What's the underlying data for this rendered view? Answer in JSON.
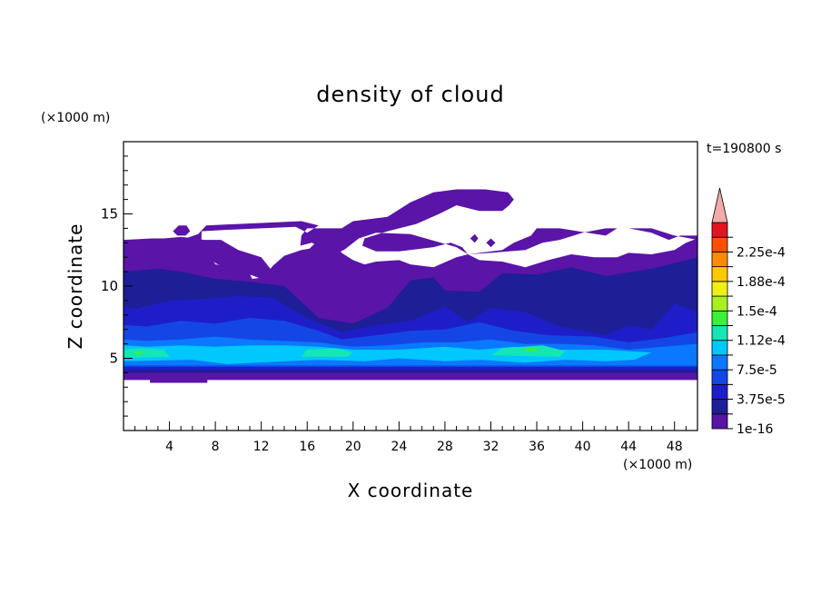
{
  "chart_data": {
    "type": "heatmap",
    "title": "density of cloud",
    "xlabel": "X coordinate",
    "ylabel": "Z coordinate",
    "x_unit": "(×1000 m)",
    "y_unit": "(×1000 m)",
    "time_label": "t=190800 s",
    "xlim": [
      0,
      50
    ],
    "ylim": [
      0,
      20
    ],
    "x_ticks": [
      4,
      8,
      12,
      16,
      20,
      24,
      28,
      32,
      36,
      40,
      44,
      48
    ],
    "y_ticks": [
      5,
      10,
      15
    ],
    "x_tick_labels": [
      "4",
      "8",
      "12",
      "16",
      "20",
      "24",
      "28",
      "32",
      "36",
      "40",
      "44",
      "48"
    ],
    "y_tick_labels": [
      "5",
      "10",
      "15"
    ],
    "colorbar": {
      "levels": [
        1e-16,
        1.875e-05,
        3.75e-05,
        5.625e-05,
        7.5e-05,
        9.375e-05,
        0.0001125,
        0.00013125,
        0.00015,
        0.00016875,
        0.0001875,
        0.00020625,
        0.000225,
        0.00024375
      ],
      "labels": [
        "1e-16",
        "3.75e-5",
        "7.5e-5",
        "1.12e-4",
        "1.5e-4",
        "1.88e-4",
        "2.25e-4"
      ],
      "colors": [
        "#5a14a8",
        "#1e1e96",
        "#1e1ec8",
        "#1446e6",
        "#0a78ff",
        "#00c8ff",
        "#14e6b4",
        "#3cf03c",
        "#aaf01e",
        "#f0f014",
        "#ffc800",
        "#ff8c00",
        "#ff5000",
        "#e6141e"
      ],
      "extend_color": "#f4aaaa"
    },
    "regions": [
      {
        "name": "upper-cloud",
        "level": 0,
        "polygon": [
          [
            2.3,
            3.3
          ],
          [
            7.3,
            3.3
          ],
          [
            7.3,
            3.7
          ],
          [
            20,
            3.7
          ],
          [
            30,
            3.8
          ],
          [
            48,
            3.6
          ],
          [
            50,
            3.9
          ],
          [
            50,
            13.2
          ],
          [
            48,
            13.5
          ],
          [
            46,
            14
          ],
          [
            43,
            14
          ],
          [
            42,
            13.5
          ],
          [
            38,
            14
          ],
          [
            36,
            14
          ],
          [
            35.5,
            13.5
          ],
          [
            34,
            13
          ],
          [
            33,
            12.5
          ],
          [
            30,
            12.2
          ],
          [
            29,
            12.7
          ],
          [
            25,
            13.6
          ],
          [
            22,
            13.7
          ],
          [
            20.5,
            13.3
          ],
          [
            19.2,
            12.5
          ],
          [
            18.2,
            12.2
          ],
          [
            17.5,
            12.6
          ],
          [
            16.4,
            13
          ],
          [
            15.4,
            12.8
          ],
          [
            15.5,
            13.5
          ],
          [
            16,
            14
          ],
          [
            19,
            14
          ],
          [
            20,
            14.5
          ],
          [
            23,
            14.8
          ],
          [
            25,
            15.8
          ],
          [
            27,
            16.5
          ],
          [
            29,
            16.7
          ],
          [
            31.5,
            16.7
          ],
          [
            33.5,
            16.5
          ],
          [
            34,
            16
          ],
          [
            33.6,
            15.6
          ],
          [
            33,
            15.2
          ],
          [
            31,
            15.2
          ],
          [
            29,
            15.6
          ],
          [
            27.5,
            15
          ],
          [
            25.5,
            14.3
          ],
          [
            23,
            13.8
          ],
          [
            21,
            13.3
          ],
          [
            20.8,
            12.8
          ],
          [
            22,
            12.4
          ],
          [
            24,
            12.4
          ],
          [
            27,
            12.7
          ],
          [
            28.5,
            13
          ],
          [
            29.5,
            12.7
          ],
          [
            30,
            12.2
          ],
          [
            32,
            12.3
          ],
          [
            35,
            12.5
          ],
          [
            36.5,
            13
          ],
          [
            38,
            13.2
          ],
          [
            40,
            13.7
          ],
          [
            42,
            14
          ],
          [
            44,
            14
          ],
          [
            46,
            13.7
          ],
          [
            47.5,
            13.2
          ],
          [
            48.5,
            13.5
          ],
          [
            50,
            13.5
          ],
          [
            50,
            3.9
          ],
          [
            6.5,
            4.3
          ],
          [
            6.8,
            13.8
          ],
          [
            9,
            13.9
          ],
          [
            12,
            14
          ],
          [
            15,
            14.1
          ],
          [
            16,
            13.7
          ],
          [
            17,
            14.2
          ],
          [
            15.5,
            14.5
          ],
          [
            10,
            14.3
          ],
          [
            7.2,
            14.2
          ],
          [
            6.5,
            13.6
          ],
          [
            5,
            13.2
          ],
          [
            2.4,
            13.3
          ],
          [
            2.4,
            11.3
          ],
          [
            4.5,
            12.3
          ],
          [
            6.5,
            12.6
          ],
          [
            8,
            11.6
          ],
          [
            9.5,
            11
          ],
          [
            11,
            10.8
          ],
          [
            12,
            10.5
          ],
          [
            13,
            11
          ],
          [
            12,
            12
          ],
          [
            10,
            12.5
          ],
          [
            8.5,
            13.2
          ],
          [
            6.5,
            13.2
          ],
          [
            2.4,
            13.3
          ],
          [
            2.3,
            4
          ]
        ]
      },
      {
        "name": "left-cap",
        "level": 0,
        "polygon": [
          [
            0,
            3.5
          ],
          [
            50,
            3.5
          ],
          [
            50,
            13.3
          ],
          [
            49,
            13
          ],
          [
            48,
            12.5
          ],
          [
            46,
            12.2
          ],
          [
            44,
            12.3
          ],
          [
            43,
            12
          ],
          [
            41,
            12
          ],
          [
            39,
            12.2
          ],
          [
            37,
            11.8
          ],
          [
            35,
            11.3
          ],
          [
            33,
            11.7
          ],
          [
            31,
            11.8
          ],
          [
            30,
            12.2
          ],
          [
            29,
            12
          ],
          [
            27,
            11.3
          ],
          [
            25,
            11.5
          ],
          [
            24,
            11.8
          ],
          [
            22,
            11.7
          ],
          [
            21,
            11.5
          ],
          [
            20,
            11.8
          ],
          [
            19,
            12.3
          ],
          [
            18.5,
            13
          ],
          [
            18,
            13.4
          ],
          [
            17,
            13.2
          ],
          [
            16.2,
            12.6
          ],
          [
            15.5,
            12.5
          ],
          [
            14,
            12.1
          ],
          [
            13,
            11.4
          ],
          [
            12.2,
            10.6
          ],
          [
            11.2,
            10.5
          ],
          [
            10.8,
            11.2
          ],
          [
            10,
            11.5
          ],
          [
            9,
            11.4
          ],
          [
            8,
            11.5
          ],
          [
            7.2,
            12.6
          ],
          [
            7,
            13.2
          ],
          [
            6.3,
            13.3
          ],
          [
            5,
            13.4
          ],
          [
            3.5,
            13.3
          ],
          [
            2.5,
            13.3
          ],
          [
            0,
            13.2
          ]
        ]
      },
      {
        "name": "small-blob-a",
        "level": 0,
        "polygon": [
          [
            4.3,
            13.8
          ],
          [
            4.8,
            14.2
          ],
          [
            5.5,
            14.2
          ],
          [
            5.8,
            13.8
          ],
          [
            5.4,
            13.5
          ],
          [
            4.7,
            13.5
          ]
        ]
      },
      {
        "name": "small-blob-b",
        "level": 0,
        "polygon": [
          [
            30.2,
            13.3
          ],
          [
            30.6,
            13.6
          ],
          [
            30.9,
            13.3
          ],
          [
            30.6,
            13
          ]
        ]
      },
      {
        "name": "small-blob-c",
        "level": 0,
        "polygon": [
          [
            31.6,
            13
          ],
          [
            32,
            13.3
          ],
          [
            32.4,
            13
          ],
          [
            32,
            12.7
          ]
        ]
      },
      {
        "name": "lower-band",
        "level": 1,
        "polygon": [
          [
            0,
            4
          ],
          [
            50,
            4
          ],
          [
            50,
            12
          ],
          [
            46,
            11.2
          ],
          [
            42,
            10.7
          ],
          [
            39,
            11.3
          ],
          [
            36,
            10.8
          ],
          [
            33,
            10.9
          ],
          [
            31,
            9.6
          ],
          [
            28,
            9.7
          ],
          [
            27,
            10.6
          ],
          [
            25,
            10.4
          ],
          [
            23,
            8.5
          ],
          [
            20,
            7.4
          ],
          [
            17,
            7.8
          ],
          [
            14,
            10
          ],
          [
            11,
            10.3
          ],
          [
            8,
            10.5
          ],
          [
            5,
            11
          ],
          [
            3,
            11.2
          ],
          [
            0,
            11
          ]
        ]
      },
      {
        "name": "mid-band",
        "level": 2,
        "polygon": [
          [
            0,
            4.2
          ],
          [
            50,
            4.2
          ],
          [
            50,
            8.2
          ],
          [
            48,
            8.8
          ],
          [
            46,
            7
          ],
          [
            44,
            7.3
          ],
          [
            42,
            6.6
          ],
          [
            38,
            7.2
          ],
          [
            35,
            8.2
          ],
          [
            32,
            8.5
          ],
          [
            30,
            7.5
          ],
          [
            28,
            8.6
          ],
          [
            25,
            7.6
          ],
          [
            22,
            7.3
          ],
          [
            19,
            6.8
          ],
          [
            16,
            7.8
          ],
          [
            13,
            9.2
          ],
          [
            10,
            9.3
          ],
          [
            7,
            9.1
          ],
          [
            4,
            9
          ],
          [
            1,
            8.4
          ],
          [
            0,
            8.6
          ]
        ]
      },
      {
        "name": "band-3",
        "level": 3,
        "polygon": [
          [
            0,
            4.4
          ],
          [
            50,
            4.4
          ],
          [
            50,
            6.8
          ],
          [
            47,
            6.4
          ],
          [
            44,
            6.1
          ],
          [
            41,
            6.5
          ],
          [
            37,
            6.6
          ],
          [
            34,
            6.9
          ],
          [
            31,
            7.5
          ],
          [
            28,
            7
          ],
          [
            25,
            6.9
          ],
          [
            22,
            6.6
          ],
          [
            19,
            6.3
          ],
          [
            17,
            6.9
          ],
          [
            14,
            7.6
          ],
          [
            11,
            7.8
          ],
          [
            8,
            7.4
          ],
          [
            5,
            7.6
          ],
          [
            2,
            7.2
          ],
          [
            0,
            7.3
          ]
        ]
      },
      {
        "name": "band-4",
        "level": 4,
        "polygon": [
          [
            0,
            4.5
          ],
          [
            50,
            4.5
          ],
          [
            50,
            6
          ],
          [
            47,
            5.8
          ],
          [
            44,
            5.6
          ],
          [
            41,
            5.9
          ],
          [
            38,
            6
          ],
          [
            35,
            6
          ],
          [
            32,
            6.3
          ],
          [
            29,
            6.1
          ],
          [
            26,
            6.1
          ],
          [
            23,
            5.9
          ],
          [
            20,
            5.8
          ],
          [
            17,
            6.1
          ],
          [
            14,
            6.2
          ],
          [
            11,
            6.3
          ],
          [
            8,
            6.5
          ],
          [
            5,
            6.3
          ],
          [
            2,
            6.2
          ],
          [
            0,
            6.3
          ]
        ]
      },
      {
        "name": "band-5",
        "level": 5,
        "polygon": [
          [
            0,
            4.8
          ],
          [
            6,
            4.9
          ],
          [
            9,
            4.6
          ],
          [
            14,
            4.8
          ],
          [
            17,
            4.9
          ],
          [
            21,
            4.8
          ],
          [
            24,
            5
          ],
          [
            28,
            4.8
          ],
          [
            31,
            4.9
          ],
          [
            35,
            4.7
          ],
          [
            38.5,
            4.9
          ],
          [
            42,
            4.8
          ],
          [
            44.5,
            4.9
          ],
          [
            46,
            5.4
          ],
          [
            42,
            5.6
          ],
          [
            38,
            5.6
          ],
          [
            34,
            5.8
          ],
          [
            31,
            5.6
          ],
          [
            28,
            5.8
          ],
          [
            24,
            5.6
          ],
          [
            20,
            5.6
          ],
          [
            17,
            5.8
          ],
          [
            14,
            5.9
          ],
          [
            11,
            5.9
          ],
          [
            8,
            5.8
          ],
          [
            5,
            5.9
          ],
          [
            2,
            5.8
          ],
          [
            0,
            5.9
          ]
        ]
      },
      {
        "name": "core-a",
        "level": 6,
        "polygon": [
          [
            0,
            5
          ],
          [
            4,
            5.1
          ],
          [
            3.5,
            5.6
          ],
          [
            1.5,
            5.7
          ],
          [
            0,
            5.6
          ]
        ]
      },
      {
        "name": "core-b",
        "level": 6,
        "polygon": [
          [
            15.5,
            5.1
          ],
          [
            19.5,
            5.1
          ],
          [
            20,
            5.4
          ],
          [
            18.5,
            5.7
          ],
          [
            16,
            5.6
          ]
        ]
      },
      {
        "name": "core-c",
        "level": 6,
        "polygon": [
          [
            32,
            5.2
          ],
          [
            38,
            5.1
          ],
          [
            38.5,
            5.5
          ],
          [
            36.5,
            5.9
          ],
          [
            33,
            5.7
          ]
        ]
      },
      {
        "name": "core-d",
        "level": 7,
        "polygon": [
          [
            1,
            5.3
          ],
          [
            1.6,
            5.3
          ],
          [
            1.6,
            5.5
          ],
          [
            1,
            5.5
          ]
        ]
      },
      {
        "name": "core-e",
        "level": 7,
        "polygon": [
          [
            35,
            5.5
          ],
          [
            36,
            5.5
          ],
          [
            36,
            5.7
          ],
          [
            35,
            5.7
          ]
        ]
      }
    ]
  }
}
